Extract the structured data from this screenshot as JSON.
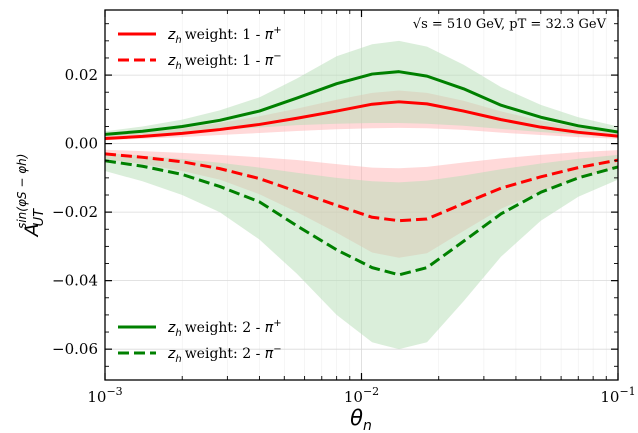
{
  "chart_data": {
    "type": "line",
    "xlabel": "θn",
    "ylabel": "A_UT^{sin(φS − φh)}",
    "ylabel_main": "A",
    "ylabel_sub": "UT",
    "ylabel_sup": "sin(φS − φh)",
    "annotation": "√s = 510 GeV, pT = 32.3 GeV",
    "xscale": "log",
    "xlim": [
      0.001,
      0.1
    ],
    "ylim": [
      -0.069,
      0.039
    ],
    "x_tick_labels": [
      "10⁻³",
      "10⁻²",
      "10⁻¹"
    ],
    "y_tick_labels": [
      "0.02",
      "0.00",
      "−0.02",
      "−0.04",
      "−0.06"
    ],
    "y_ticks": [
      0.02,
      0.0,
      -0.02,
      -0.04,
      -0.06
    ],
    "grid": true,
    "legend_top": "top-left",
    "legend_bottom": "bottom-left",
    "x": [
      0.001,
      0.0014,
      0.002,
      0.0028,
      0.004,
      0.0056,
      0.008,
      0.011,
      0.014,
      0.018,
      0.025,
      0.035,
      0.05,
      0.07,
      0.1
    ],
    "series": [
      {
        "name": "zh weight: 1 - π+",
        "legend_label": "zh weight: 1 - π+",
        "color": "#ff0000",
        "dash": "solid",
        "band_color": "#ffaaaa",
        "values": [
          0.0015,
          0.0021,
          0.003,
          0.0041,
          0.0056,
          0.0074,
          0.0095,
          0.0115,
          0.0122,
          0.0116,
          0.0095,
          0.007,
          0.0048,
          0.0033,
          0.0022
        ],
        "band_low": [
          0.001,
          0.0014,
          0.0019,
          0.0025,
          0.0031,
          0.0037,
          0.0042,
          0.0045,
          0.0046,
          0.0045,
          0.004,
          0.0032,
          0.0025,
          0.0019,
          0.0014
        ],
        "band_high": [
          0.0022,
          0.0031,
          0.0045,
          0.006,
          0.008,
          0.0102,
          0.0128,
          0.0148,
          0.0155,
          0.0148,
          0.0125,
          0.0094,
          0.0067,
          0.0047,
          0.0033
        ]
      },
      {
        "name": "zh weight: 1 - π−",
        "legend_label": "zh weight: 1 - π−",
        "color": "#ff0000",
        "dash": "dashed",
        "band_color": "#ffaaaa",
        "values": [
          -0.003,
          -0.004,
          -0.0053,
          -0.0073,
          -0.0102,
          -0.014,
          -0.018,
          -0.0215,
          -0.0225,
          -0.022,
          -0.0175,
          -0.013,
          -0.0097,
          -0.007,
          -0.0048
        ],
        "band_low": [
          -0.0045,
          -0.006,
          -0.008,
          -0.0105,
          -0.0148,
          -0.02,
          -0.026,
          -0.0318,
          -0.0333,
          -0.032,
          -0.0255,
          -0.019,
          -0.014,
          -0.01,
          -0.007
        ],
        "band_high": [
          -0.0018,
          -0.0022,
          -0.0027,
          -0.0033,
          -0.004,
          -0.0048,
          -0.006,
          -0.007,
          -0.0072,
          -0.0068,
          -0.0055,
          -0.0043,
          -0.0033,
          -0.0025,
          -0.0019
        ]
      },
      {
        "name": "zh weight: 2 - π+",
        "legend_label": "zh weight: 2 - π+",
        "color": "#008000",
        "dash": "solid",
        "band_color": "#b6ddb6",
        "values": [
          0.0027,
          0.0036,
          0.005,
          0.0068,
          0.0095,
          0.0133,
          0.0175,
          0.0203,
          0.021,
          0.0197,
          0.016,
          0.0112,
          0.0077,
          0.0052,
          0.0034
        ],
        "band_low": [
          0.002,
          0.0026,
          0.0033,
          0.004,
          0.0047,
          0.0054,
          0.0058,
          0.006,
          0.006,
          0.0058,
          0.0052,
          0.0043,
          0.0034,
          0.0026,
          0.002
        ],
        "band_high": [
          0.0036,
          0.005,
          0.007,
          0.0097,
          0.0135,
          0.019,
          0.0255,
          0.029,
          0.03,
          0.0283,
          0.023,
          0.0165,
          0.0113,
          0.0077,
          0.005
        ]
      },
      {
        "name": "zh weight: 2 - π−",
        "legend_label": "zh weight: 2 - π−",
        "color": "#008000",
        "dash": "dashed",
        "band_color": "#b6ddb6",
        "values": [
          -0.005,
          -0.0066,
          -0.009,
          -0.0125,
          -0.017,
          -0.024,
          -0.031,
          -0.0362,
          -0.0383,
          -0.0362,
          -0.0285,
          -0.0205,
          -0.0142,
          -0.01,
          -0.0068
        ],
        "band_low": [
          -0.008,
          -0.011,
          -0.015,
          -0.02,
          -0.028,
          -0.038,
          -0.05,
          -0.058,
          -0.06,
          -0.058,
          -0.046,
          -0.033,
          -0.0225,
          -0.0155,
          -0.0105
        ],
        "band_high": [
          -0.0028,
          -0.0035,
          -0.0045,
          -0.0056,
          -0.007,
          -0.0085,
          -0.01,
          -0.011,
          -0.0113,
          -0.0108,
          -0.0093,
          -0.0075,
          -0.0058,
          -0.0044,
          -0.0033
        ]
      }
    ]
  }
}
